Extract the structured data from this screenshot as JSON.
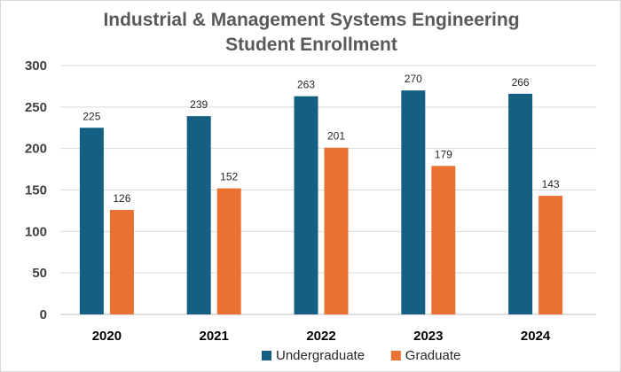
{
  "chart_data": {
    "type": "bar",
    "title_line1": "Industrial & Management Systems Engineering",
    "title_line2": "Student Enrollment",
    "categories": [
      "2020",
      "2021",
      "2022",
      "2023",
      "2024"
    ],
    "series": [
      {
        "name": "Undergraduate",
        "color": "#156082",
        "values": [
          225,
          239,
          263,
          270,
          266
        ]
      },
      {
        "name": "Graduate",
        "color": "#E97132",
        "values": [
          126,
          152,
          201,
          179,
          143
        ]
      }
    ],
    "ylim": [
      0,
      300
    ],
    "yticks": [
      0,
      50,
      100,
      150,
      200,
      250,
      300
    ],
    "grid": true,
    "legend": "bottom"
  }
}
